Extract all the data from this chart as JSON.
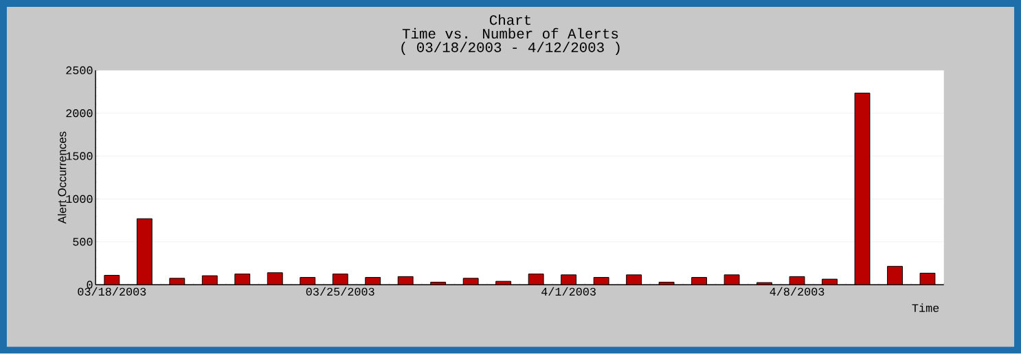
{
  "chart_data": {
    "type": "bar",
    "title": "Chart",
    "subtitle": "Time vs. Number of Alerts\n( 03/18/2003 - 4/12/2003 )",
    "xlabel": "Time",
    "ylabel": "Alert Occurrences",
    "categories": [
      "03/18/2003",
      null,
      null,
      null,
      null,
      null,
      null,
      "03/25/2003",
      null,
      null,
      null,
      null,
      null,
      null,
      "4/1/2003",
      null,
      null,
      null,
      null,
      null,
      null,
      "4/8/2003",
      null,
      null,
      null,
      null
    ],
    "values": [
      110,
      770,
      75,
      105,
      125,
      140,
      85,
      125,
      85,
      95,
      30,
      75,
      40,
      125,
      115,
      85,
      115,
      30,
      85,
      115,
      25,
      95,
      65,
      2235,
      215,
      135
    ],
    "color": "#bb0000",
    "ylim": [
      0,
      2500
    ],
    "yticks": [
      0,
      500,
      1000,
      1500,
      2000,
      2500
    ],
    "grid": "y"
  }
}
